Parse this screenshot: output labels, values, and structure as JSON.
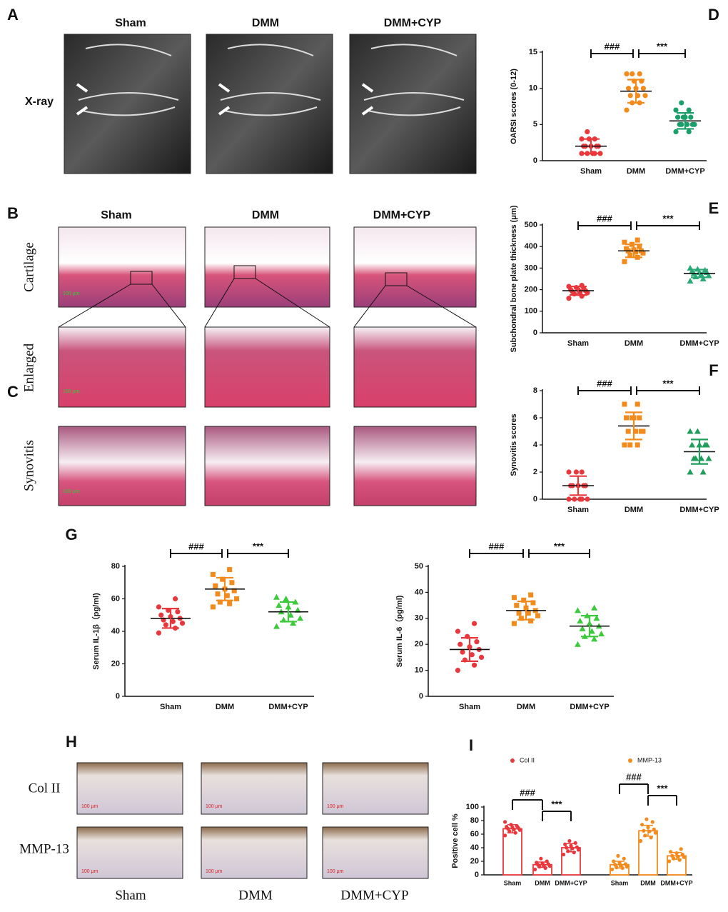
{
  "figure": {
    "A": {
      "label": "A",
      "columns": [
        "Sham",
        "DMM",
        "DMM+CYP"
      ],
      "rows": [
        "X-ray"
      ]
    },
    "B": {
      "label": "B",
      "columns": [
        "Sham",
        "DMM",
        "DMM+CYP"
      ],
      "rows": [
        "Cartilage",
        "Enlarged"
      ]
    },
    "C": {
      "label": "C",
      "rows": [
        "Synovitis"
      ]
    },
    "G": {
      "label": "G"
    },
    "H": {
      "label": "H",
      "rows": [
        "Col II",
        "MMP-13"
      ],
      "columns": [
        "Sham",
        "DMM",
        "DMM+CYP"
      ]
    },
    "scale_bar": "100 μm"
  },
  "chart_data": [
    {
      "type": "dotplot",
      "panel": "D",
      "ylabel": "OARSI scores (0-12)",
      "categories": [
        "Sham",
        "DMM",
        "DMM+CYP"
      ],
      "groups": [
        {
          "color": "#e8383d",
          "marker": "circle",
          "mean": 2,
          "sd": 1,
          "values": [
            1,
            1,
            1,
            1,
            1,
            2,
            2,
            2,
            2,
            2,
            3,
            3,
            3,
            4
          ]
        },
        {
          "color": "#f28a1c",
          "marker": "circle",
          "mean": 9.6,
          "sd": 1.6,
          "values": [
            7,
            8,
            8,
            9,
            9,
            9,
            10,
            10,
            10,
            11,
            11,
            12,
            12,
            12
          ]
        },
        {
          "color": "#1a9e6a",
          "marker": "circle",
          "mean": 5.5,
          "sd": 1.1,
          "values": [
            4,
            4,
            5,
            5,
            5,
            5,
            5,
            6,
            6,
            6,
            6,
            7,
            7,
            8
          ]
        }
      ],
      "ylim": [
        0,
        15
      ],
      "yticks": [
        0,
        5,
        10,
        15
      ],
      "annotations": [
        "###",
        "***"
      ]
    },
    {
      "type": "dotplot",
      "panel": "E",
      "ylabel": "Subchondral bone plate thickness (μm)",
      "categories": [
        "Sham",
        "DMM",
        "DMM+CYP"
      ],
      "groups": [
        {
          "color": "#e8383d",
          "marker": "circle",
          "mean": 195,
          "sd": 20,
          "values": [
            160,
            170,
            180,
            185,
            190,
            190,
            195,
            200,
            200,
            205,
            210,
            215,
            220
          ]
        },
        {
          "color": "#f28a1c",
          "marker": "square",
          "mean": 380,
          "sd": 30,
          "values": [
            330,
            350,
            360,
            370,
            375,
            380,
            380,
            385,
            390,
            400,
            410,
            420,
            430
          ]
        },
        {
          "color": "#2aa876",
          "marker": "triangle",
          "mean": 275,
          "sd": 18,
          "values": [
            240,
            250,
            260,
            265,
            270,
            275,
            280,
            280,
            285,
            290,
            295,
            300
          ]
        }
      ],
      "ylim": [
        0,
        500
      ],
      "yticks": [
        0,
        100,
        200,
        300,
        400,
        500
      ],
      "annotations": [
        "###",
        "***"
      ]
    },
    {
      "type": "dotplot",
      "panel": "F",
      "ylabel": "Synovitis scores",
      "categories": [
        "Sham",
        "DMM",
        "DMM+CYP"
      ],
      "groups": [
        {
          "color": "#e8383d",
          "marker": "circle",
          "mean": 1,
          "sd": 0.7,
          "values": [
            0,
            0,
            0,
            0,
            0,
            1,
            1,
            1,
            1,
            1,
            2,
            2,
            2
          ]
        },
        {
          "color": "#f28a1c",
          "marker": "square",
          "mean": 5.4,
          "sd": 1,
          "values": [
            4,
            4,
            4,
            5,
            5,
            5,
            5,
            6,
            6,
            6,
            6,
            7,
            7
          ]
        },
        {
          "color": "#1e9e5a",
          "marker": "triangle",
          "mean": 3.5,
          "sd": 0.9,
          "values": [
            2,
            2,
            3,
            3,
            3,
            3,
            4,
            4,
            4,
            4,
            5,
            5
          ]
        }
      ],
      "ylim": [
        0,
        8
      ],
      "yticks": [
        0,
        2,
        4,
        6,
        8
      ],
      "annotations": [
        "###",
        "***"
      ]
    },
    {
      "type": "dotplot",
      "ylabel": "Serum IL-1β（pg/ml)",
      "categories": [
        "Sham",
        "DMM",
        "DMM+CYP"
      ],
      "groups": [
        {
          "color": "#e8383d",
          "marker": "circle",
          "mean": 48,
          "sd": 6,
          "values": [
            39,
            42,
            44,
            45,
            46,
            47,
            48,
            49,
            50,
            52,
            53,
            55,
            60
          ]
        },
        {
          "color": "#f28a1c",
          "marker": "square",
          "mean": 66,
          "sd": 7,
          "values": [
            55,
            57,
            58,
            60,
            62,
            63,
            65,
            66,
            68,
            70,
            72,
            75,
            78
          ]
        },
        {
          "color": "#3cc93c",
          "marker": "triangle",
          "mean": 52,
          "sd": 6,
          "values": [
            43,
            45,
            47,
            48,
            50,
            52,
            53,
            55,
            56,
            58,
            60,
            61
          ]
        }
      ],
      "ylim": [
        0,
        80
      ],
      "yticks": [
        0,
        20,
        40,
        60,
        80
      ],
      "annotations": [
        "###",
        "***"
      ]
    },
    {
      "type": "dotplot",
      "ylabel": "Serum IL-6（pg/ml)",
      "categories": [
        "Sham",
        "DMM",
        "DMM+CYP"
      ],
      "groups": [
        {
          "color": "#e8383d",
          "marker": "circle",
          "mean": 18,
          "sd": 4.5,
          "values": [
            10,
            12,
            14,
            15,
            16,
            17,
            18,
            19,
            20,
            21,
            23,
            25,
            28
          ]
        },
        {
          "color": "#f28a1c",
          "marker": "square",
          "mean": 33,
          "sd": 3.5,
          "values": [
            28,
            29,
            30,
            31,
            32,
            32,
            33,
            34,
            35,
            36,
            37,
            38,
            39
          ]
        },
        {
          "color": "#3cc93c",
          "marker": "triangle",
          "mean": 27,
          "sd": 4,
          "values": [
            20,
            22,
            23,
            24,
            25,
            26,
            27,
            28,
            29,
            30,
            31,
            33,
            34
          ]
        }
      ],
      "ylim": [
        0,
        50
      ],
      "yticks": [
        0,
        10,
        20,
        30,
        40,
        50
      ],
      "annotations": [
        "###",
        "***"
      ]
    },
    {
      "type": "bar",
      "panel": "I",
      "ylabel": "Positive cell %",
      "categories": [
        "Sham",
        "DMM",
        "DMM+CYP"
      ],
      "series": [
        {
          "name": "Col II",
          "color": "#e8383d",
          "values": [
            68,
            15,
            40
          ],
          "sd": [
            6,
            4,
            6
          ],
          "points": [
            [
              58,
              62,
              64,
              66,
              67,
              68,
              69,
              70,
              71,
              72,
              74,
              78
            ],
            [
              8,
              10,
              12,
              13,
              14,
              15,
              16,
              17,
              18,
              20,
              24
            ],
            [
              30,
              33,
              35,
              37,
              39,
              40,
              41,
              43,
              45,
              47,
              50
            ]
          ]
        },
        {
          "name": "MMP-13",
          "color": "#f28a1c",
          "values": [
            15,
            65,
            28
          ],
          "sd": [
            5,
            8,
            5
          ],
          "points": [
            [
              8,
              10,
              11,
              12,
              14,
              15,
              16,
              18,
              20,
              24,
              28
            ],
            [
              50,
              55,
              58,
              62,
              64,
              65,
              67,
              70,
              74,
              78,
              82
            ],
            [
              20,
              22,
              24,
              26,
              27,
              28,
              30,
              32,
              34,
              38
            ]
          ]
        }
      ],
      "ylim": [
        0,
        100
      ],
      "yticks": [
        0,
        20,
        40,
        60,
        80,
        100
      ],
      "annotations": [
        "###",
        "***"
      ]
    }
  ]
}
